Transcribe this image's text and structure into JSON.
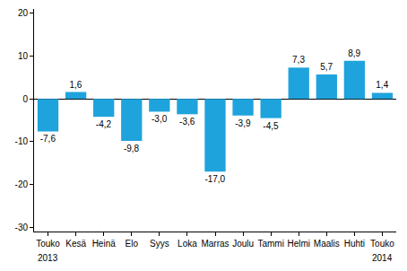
{
  "chart_data": {
    "type": "bar",
    "categories": [
      "Touko",
      "Kesä",
      "Heinä",
      "Elo",
      "Syys",
      "Loka",
      "Marras",
      "Joulu",
      "Tammi",
      "Helmi",
      "Maalis",
      "Huhti",
      "Touko"
    ],
    "values": [
      -7.6,
      1.6,
      -4.2,
      -9.8,
      -3.0,
      -3.6,
      -17.0,
      -3.9,
      -4.5,
      7.3,
      5.7,
      8.9,
      1.4
    ],
    "value_labels": [
      "-7,6",
      "1,6",
      "-4,2",
      "-9,8",
      "-3,0",
      "-3,6",
      "-17,0",
      "-3,9",
      "-4,5",
      "7,3",
      "5,7",
      "8,9",
      "1,4"
    ],
    "color": "#1fa3dc",
    "ylim": [
      -31,
      21
    ],
    "yticks": [
      -30,
      -20,
      -10,
      0,
      10,
      20
    ],
    "grid": false,
    "data_labels": true,
    "annotations": [
      {
        "at": 0,
        "text": "2013"
      },
      {
        "at": 12,
        "text": "2014"
      }
    ]
  }
}
